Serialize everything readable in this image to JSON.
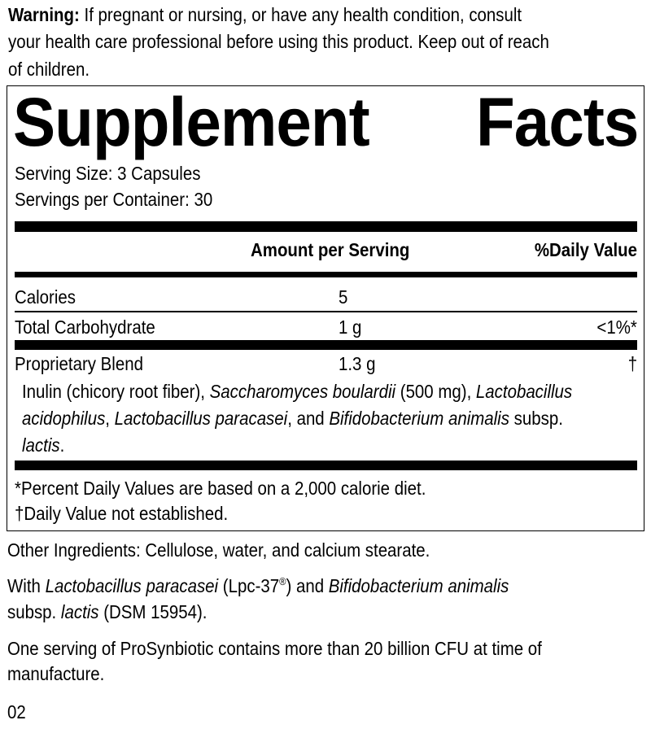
{
  "warning": {
    "label": "Warning:",
    "line1": " If pregnant or nursing, or have any health condition, consult",
    "line2": "your health care professional before using this product. Keep out of reach",
    "line3": "of children."
  },
  "facts": {
    "title_word1": "Supplement",
    "title_word2": "Facts",
    "serving_size": "Serving Size: 3 Capsules",
    "servings_per_container": "Servings per Container: 30",
    "header_amount": "Amount per Serving",
    "header_dv": "%Daily Value",
    "rows": [
      {
        "name": "Calories",
        "amount": "5",
        "dv": ""
      },
      {
        "name": "Total Carbohydrate",
        "amount": "1 g",
        "dv": "<1%*"
      },
      {
        "name": "Proprietary Blend",
        "amount": "1.3 g",
        "dv": "†"
      }
    ],
    "blend": {
      "s1": "Inulin (chicory root fiber), ",
      "s2": "Saccharomyces boulardii",
      "s3": " (500 mg), ",
      "s4": "Lactobacillus",
      "s5": "acidophilus",
      "s6": ", ",
      "s7": "Lactobacillus paracasei",
      "s8": ", and ",
      "s9": "Bifidobacterium animalis",
      "s10": " subsp.",
      "s11": "lactis",
      "s12": "."
    },
    "footnote1": "*Percent Daily Values are based on a 2,000 calorie diet.",
    "footnote2": "†Daily Value not established."
  },
  "other_ingredients": "Other Ingredients: Cellulose, water, and calcium stearate.",
  "with": {
    "s1": "With ",
    "s2": "Lactobacillus paracasei",
    "s3": " (Lpc-37",
    "reg": "®",
    "s4": ") and ",
    "s5": "Bifidobacterium animalis",
    "s6": "subsp. ",
    "s7": "lactis",
    "s8": " (DSM 15954)."
  },
  "cfu": {
    "line1": "One serving of ProSynbiotic contains more than 20 billion CFU at time of",
    "line2": "manufacture."
  },
  "code": "02"
}
